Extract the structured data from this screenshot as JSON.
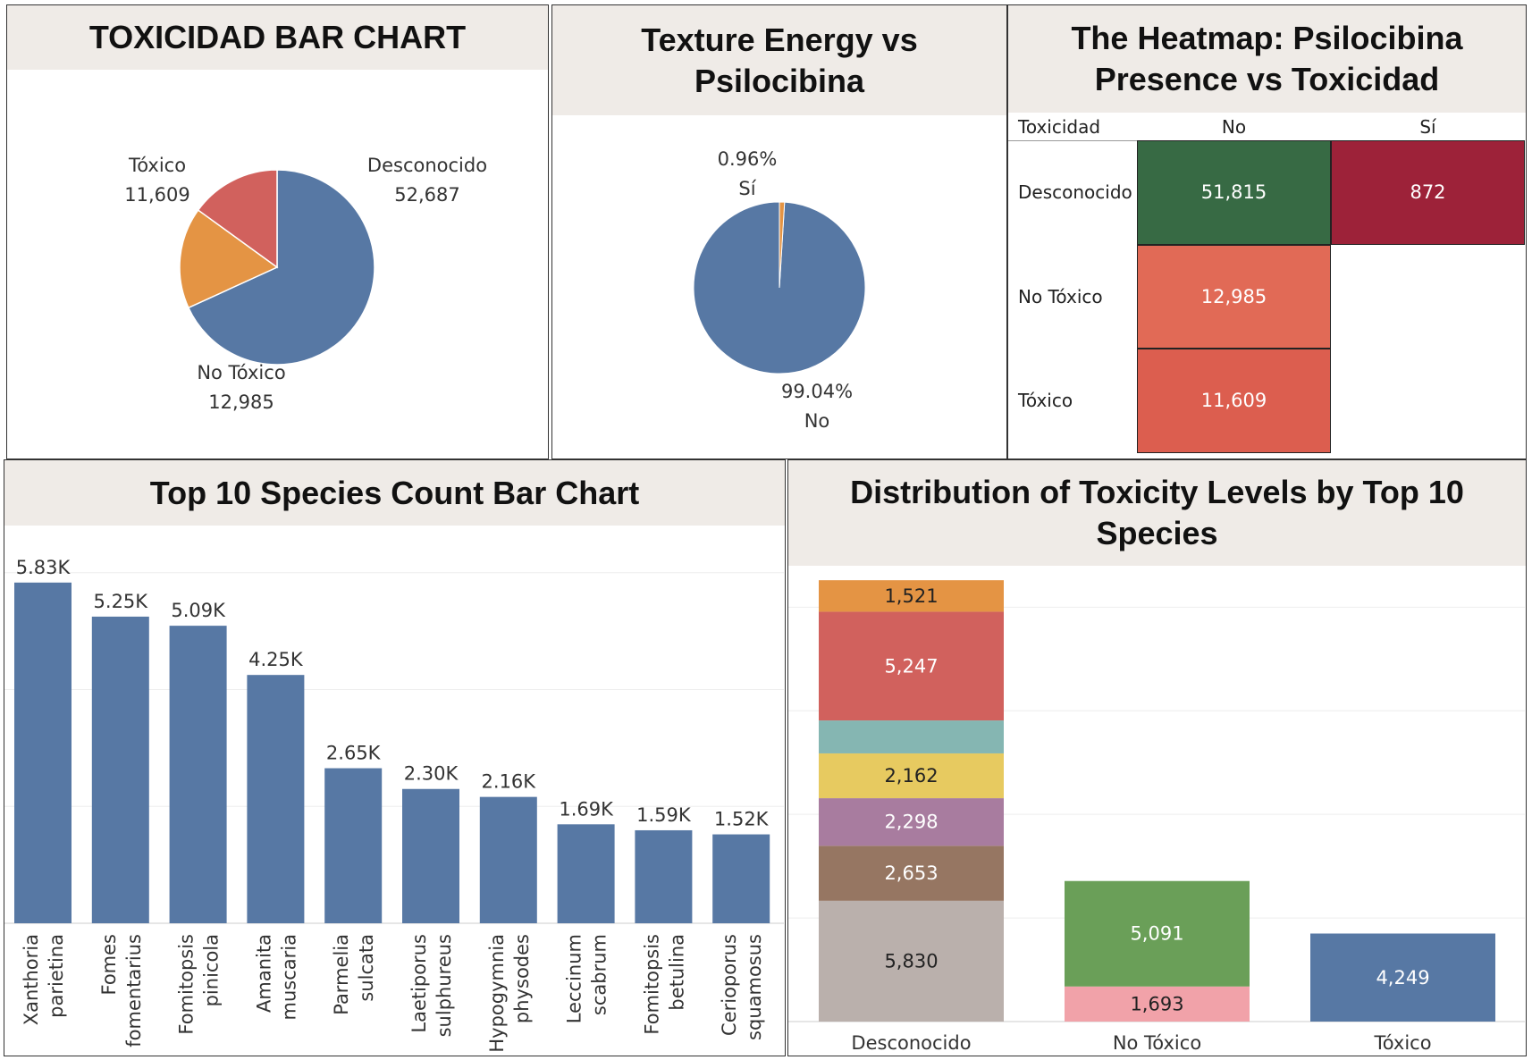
{
  "panels": {
    "pie1_title": "TOXICIDAD BAR CHART",
    "pie2_title": "Texture Energy vs Psilocibina",
    "heat_title": "The Heatmap: Psilocibina Presence vs Toxicidad",
    "bar_title": "Top 10 Species Count Bar Chart",
    "stack_title": "Distribution of Toxicity Levels by Top 10 Species"
  },
  "chart_data": [
    {
      "type": "pie",
      "title": "TOXICIDAD BAR CHART",
      "slices": [
        {
          "label": "Desconocido",
          "value": 52687,
          "display": "52,687",
          "color": "#5778a4"
        },
        {
          "label": "No Tóxico",
          "value": 12985,
          "display": "12,985",
          "color": "#e49444"
        },
        {
          "label": "Tóxico",
          "value": 11609,
          "display": "11,609",
          "color": "#d1615d"
        }
      ]
    },
    {
      "type": "pie",
      "title": "Texture Energy vs Psilocibina",
      "slices": [
        {
          "label": "No",
          "value": 99.04,
          "display": "99.04%",
          "color": "#5778a4"
        },
        {
          "label": "Sí",
          "value": 0.96,
          "display": "0.96%",
          "color": "#e49444"
        }
      ]
    },
    {
      "type": "heatmap",
      "title": "The Heatmap: Psilocibina Presence vs Toxicidad",
      "row_header": "Toxicidad",
      "columns": [
        "No",
        "Sí"
      ],
      "rows": [
        "Desconocido",
        "No Tóxico",
        "Tóxico"
      ],
      "cells": [
        {
          "row": "Desconocido",
          "col": "No",
          "value": "51,815",
          "color": "#376a44"
        },
        {
          "row": "Desconocido",
          "col": "Sí",
          "value": "872",
          "color": "#9d2239"
        },
        {
          "row": "No Tóxico",
          "col": "No",
          "value": "12,985",
          "color": "#e16a56"
        },
        {
          "row": "Tóxico",
          "col": "No",
          "value": "11,609",
          "color": "#dc5e4f"
        }
      ]
    },
    {
      "type": "bar",
      "title": "Top 10 Species Count Bar Chart",
      "ylim": [
        0,
        6500
      ],
      "gridlines": [
        0,
        2000,
        4000,
        6000
      ],
      "bar_color": "#5778a4",
      "categories": [
        [
          "Xanthoria",
          "parietina"
        ],
        [
          "Fomes",
          "fomentarius"
        ],
        [
          "Fomitopsis",
          "pinicola"
        ],
        [
          "Amanita",
          "muscaria"
        ],
        [
          "Parmelia",
          "sulcata"
        ],
        [
          "Laetiporus",
          "sulphureus"
        ],
        [
          "Hypogymnia",
          "physodes"
        ],
        [
          "Leccinum",
          "scabrum"
        ],
        [
          "Fomitopsis",
          "betulina"
        ],
        [
          "Cerioporus",
          "squamosus"
        ]
      ],
      "values": [
        5830,
        5247,
        5091,
        4249,
        2653,
        2298,
        2162,
        1693,
        1591,
        1521
      ],
      "labels": [
        "5.83K",
        "5.25K",
        "5.09K",
        "4.25K",
        "2.65K",
        "2.30K",
        "2.16K",
        "1.69K",
        "1.59K",
        "1.52K"
      ]
    },
    {
      "type": "bar",
      "stacked": true,
      "title": "Distribution of Toxicity Levels by Top 10 Species",
      "ylim": [
        0,
        22000
      ],
      "gridlines": [
        0,
        5000,
        10000,
        15000,
        20000
      ],
      "categories": [
        "Desconocido",
        "No Tóxico",
        "Tóxico"
      ],
      "stacks": [
        [
          {
            "value": 5830,
            "label": "5,830",
            "color": "#bab0ac",
            "text_color": "#222"
          },
          {
            "value": 2653,
            "label": "2,653",
            "color": "#967662",
            "text_color": "#fff"
          },
          {
            "value": 2298,
            "label": "2,298",
            "color": "#a87c9f",
            "text_color": "#fff"
          },
          {
            "value": 2162,
            "label": "2,162",
            "color": "#e7ca60",
            "text_color": "#222"
          },
          {
            "value": 1591,
            "label": "",
            "color": "#85b6b2",
            "text_color": "#fff"
          },
          {
            "value": 5247,
            "label": "5,247",
            "color": "#d1615d",
            "text_color": "#fff"
          },
          {
            "value": 1521,
            "label": "1,521",
            "color": "#e49444",
            "text_color": "#222"
          }
        ],
        [
          {
            "value": 1693,
            "label": "1,693",
            "color": "#f1a2a9",
            "text_color": "#222"
          },
          {
            "value": 5091,
            "label": "5,091",
            "color": "#6a9f58",
            "text_color": "#fff"
          }
        ],
        [
          {
            "value": 4249,
            "label": "4,249",
            "color": "#5778a4",
            "text_color": "#fff"
          }
        ]
      ]
    }
  ]
}
